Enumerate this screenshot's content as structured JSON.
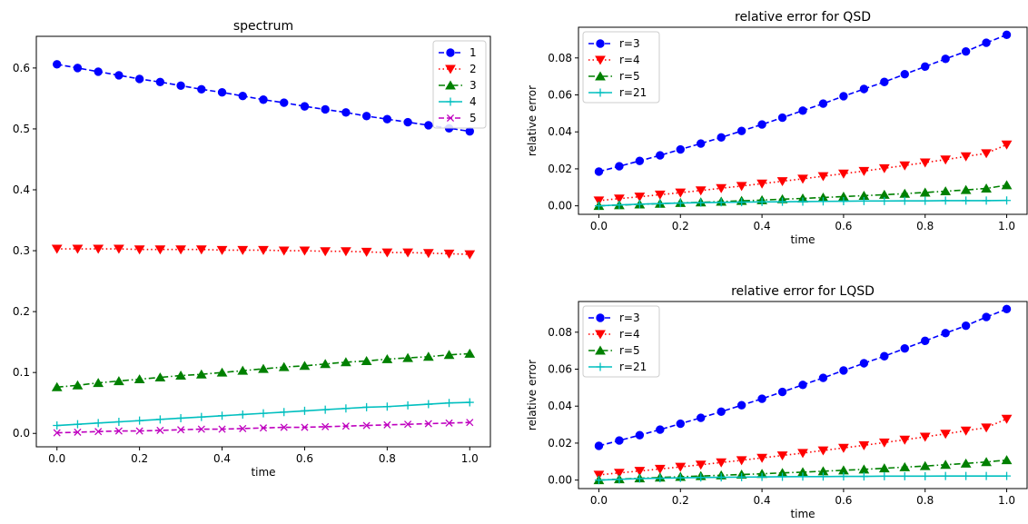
{
  "chart_data": [
    {
      "type": "line",
      "title": "spectrum",
      "xlabel": "time",
      "ylabel": "",
      "xlim": [
        -0.05,
        1.05
      ],
      "ylim": [
        -0.022,
        0.652
      ],
      "xticks": [
        0.0,
        0.2,
        0.4,
        0.6,
        0.8,
        1.0
      ],
      "xtick_labels": [
        "0.0",
        "0.2",
        "0.4",
        "0.6",
        "0.8",
        "1.0"
      ],
      "yticks": [
        0.0,
        0.1,
        0.2,
        0.3,
        0.4,
        0.5,
        0.6
      ],
      "ytick_labels": [
        "0.0",
        "0.1",
        "0.2",
        "0.3",
        "0.4",
        "0.5",
        "0.6"
      ],
      "grid": false,
      "legend": "top-right",
      "x": [
        0.0,
        0.05,
        0.1,
        0.15,
        0.2,
        0.25,
        0.3,
        0.35,
        0.4,
        0.45,
        0.5,
        0.55,
        0.6,
        0.65,
        0.7,
        0.75,
        0.8,
        0.85,
        0.9,
        0.95,
        1.0
      ],
      "series": [
        {
          "name": "1",
          "color": "#0000ff",
          "style": "dashed",
          "marker": "circle",
          "values": [
            0.606,
            0.6,
            0.594,
            0.588,
            0.582,
            0.577,
            0.571,
            0.565,
            0.56,
            0.554,
            0.548,
            0.543,
            0.537,
            0.532,
            0.527,
            0.521,
            0.516,
            0.511,
            0.506,
            0.501,
            0.496
          ]
        },
        {
          "name": "2",
          "color": "#ff0000",
          "style": "dotted",
          "marker": "triangle-down",
          "values": [
            0.303,
            0.303,
            0.303,
            0.303,
            0.302,
            0.302,
            0.302,
            0.302,
            0.301,
            0.301,
            0.301,
            0.3,
            0.3,
            0.299,
            0.299,
            0.298,
            0.297,
            0.297,
            0.296,
            0.295,
            0.294
          ]
        },
        {
          "name": "3",
          "color": "#008000",
          "style": "dashdot",
          "marker": "triangle-up",
          "values": [
            0.076,
            0.079,
            0.083,
            0.086,
            0.089,
            0.092,
            0.095,
            0.097,
            0.1,
            0.103,
            0.106,
            0.109,
            0.111,
            0.114,
            0.117,
            0.119,
            0.122,
            0.124,
            0.126,
            0.129,
            0.131
          ]
        },
        {
          "name": "4",
          "color": "#00bfbf",
          "style": "solid",
          "marker": "plus",
          "values": [
            0.013,
            0.015,
            0.017,
            0.019,
            0.021,
            0.023,
            0.025,
            0.027,
            0.029,
            0.031,
            0.033,
            0.035,
            0.037,
            0.039,
            0.041,
            0.043,
            0.044,
            0.046,
            0.048,
            0.05,
            0.051
          ]
        },
        {
          "name": "5",
          "color": "#bf00bf",
          "style": "dashed",
          "marker": "x",
          "values": [
            0.001,
            0.002,
            0.003,
            0.004,
            0.004,
            0.005,
            0.006,
            0.007,
            0.007,
            0.008,
            0.009,
            0.01,
            0.01,
            0.011,
            0.012,
            0.013,
            0.014,
            0.015,
            0.016,
            0.017,
            0.018
          ]
        }
      ]
    },
    {
      "type": "line",
      "title": "relative error for QSD",
      "xlabel": "time",
      "ylabel": "relative error",
      "xlim": [
        -0.05,
        1.05
      ],
      "ylim": [
        -0.0046,
        0.0966
      ],
      "xticks": [
        0.0,
        0.2,
        0.4,
        0.6,
        0.8,
        1.0
      ],
      "xtick_labels": [
        "0.0",
        "0.2",
        "0.4",
        "0.6",
        "0.8",
        "1.0"
      ],
      "yticks": [
        0.0,
        0.02,
        0.04,
        0.06,
        0.08
      ],
      "ytick_labels": [
        "0.00",
        "0.02",
        "0.04",
        "0.06",
        "0.08"
      ],
      "grid": false,
      "legend": "top-left",
      "x": [
        0.0,
        0.05,
        0.1,
        0.15,
        0.2,
        0.25,
        0.3,
        0.35,
        0.4,
        0.45,
        0.5,
        0.55,
        0.6,
        0.65,
        0.7,
        0.75,
        0.8,
        0.85,
        0.9,
        0.95,
        1.0
      ],
      "series": [
        {
          "name": "r=3",
          "color": "#0000ff",
          "style": "dashed",
          "marker": "circle",
          "values": [
            0.0185,
            0.0214,
            0.0243,
            0.0273,
            0.0305,
            0.0337,
            0.037,
            0.0405,
            0.044,
            0.0477,
            0.0515,
            0.0553,
            0.0593,
            0.0632,
            0.067,
            0.0712,
            0.0753,
            0.0795,
            0.0835,
            0.0882,
            0.0925
          ]
        },
        {
          "name": "r=4",
          "color": "#ff0000",
          "style": "dotted",
          "marker": "triangle-down",
          "values": [
            0.0028,
            0.0039,
            0.0049,
            0.006,
            0.0071,
            0.0083,
            0.0095,
            0.0107,
            0.012,
            0.0133,
            0.0146,
            0.016,
            0.0174,
            0.0188,
            0.0203,
            0.0218,
            0.0234,
            0.025,
            0.0267,
            0.0284,
            0.0331
          ]
        },
        {
          "name": "r=5",
          "color": "#008000",
          "style": "dashdot",
          "marker": "triangle-up",
          "values": [
            0.0,
            0.0004,
            0.0008,
            0.0012,
            0.0016,
            0.0019,
            0.0023,
            0.0027,
            0.0031,
            0.0036,
            0.004,
            0.0045,
            0.005,
            0.0055,
            0.006,
            0.0066,
            0.0072,
            0.0079,
            0.0086,
            0.0094,
            0.0112
          ]
        },
        {
          "name": "r=21",
          "color": "#00bfbf",
          "style": "solid",
          "marker": "plus",
          "values": [
            0.0,
            0.0005,
            0.0009,
            0.0012,
            0.0015,
            0.0017,
            0.0019,
            0.002,
            0.0021,
            0.0022,
            0.0023,
            0.0024,
            0.0025,
            0.0026,
            0.0026,
            0.0027,
            0.0027,
            0.0028,
            0.0028,
            0.0028,
            0.0029
          ]
        }
      ]
    },
    {
      "type": "line",
      "title": "relative error for LQSD",
      "xlabel": "time",
      "ylabel": "relative error",
      "xlim": [
        -0.05,
        1.05
      ],
      "ylim": [
        -0.0046,
        0.0966
      ],
      "xticks": [
        0.0,
        0.2,
        0.4,
        0.6,
        0.8,
        1.0
      ],
      "xtick_labels": [
        "0.0",
        "0.2",
        "0.4",
        "0.6",
        "0.8",
        "1.0"
      ],
      "yticks": [
        0.0,
        0.02,
        0.04,
        0.06,
        0.08
      ],
      "ytick_labels": [
        "0.00",
        "0.02",
        "0.04",
        "0.06",
        "0.08"
      ],
      "grid": false,
      "legend": "top-left",
      "x": [
        0.0,
        0.05,
        0.1,
        0.15,
        0.2,
        0.25,
        0.3,
        0.35,
        0.4,
        0.45,
        0.5,
        0.55,
        0.6,
        0.65,
        0.7,
        0.75,
        0.8,
        0.85,
        0.9,
        0.95,
        1.0
      ],
      "series": [
        {
          "name": "r=3",
          "color": "#0000ff",
          "style": "dashed",
          "marker": "circle",
          "values": [
            0.0185,
            0.0214,
            0.0243,
            0.0273,
            0.0305,
            0.0337,
            0.037,
            0.0405,
            0.044,
            0.0477,
            0.0515,
            0.0553,
            0.0593,
            0.0632,
            0.067,
            0.0712,
            0.0753,
            0.0795,
            0.0835,
            0.0882,
            0.0925
          ]
        },
        {
          "name": "r=4",
          "color": "#ff0000",
          "style": "dotted",
          "marker": "triangle-down",
          "values": [
            0.0028,
            0.0039,
            0.0049,
            0.006,
            0.0071,
            0.0083,
            0.0095,
            0.0107,
            0.012,
            0.0133,
            0.0146,
            0.016,
            0.0174,
            0.0188,
            0.0203,
            0.0218,
            0.0234,
            0.025,
            0.0267,
            0.0284,
            0.0331
          ]
        },
        {
          "name": "r=5",
          "color": "#008000",
          "style": "dashdot",
          "marker": "triangle-up",
          "values": [
            0.0,
            0.0005,
            0.001,
            0.0014,
            0.0018,
            0.0022,
            0.0026,
            0.003,
            0.0034,
            0.0039,
            0.0043,
            0.0048,
            0.0053,
            0.0058,
            0.0064,
            0.007,
            0.0076,
            0.0083,
            0.009,
            0.0098,
            0.0108
          ]
        },
        {
          "name": "r=21",
          "color": "#00bfbf",
          "style": "solid",
          "marker": "plus",
          "values": [
            0.0,
            0.0004,
            0.0008,
            0.001,
            0.0012,
            0.0014,
            0.0015,
            0.0016,
            0.0017,
            0.0018,
            0.0019,
            0.0019,
            0.002,
            0.002,
            0.0021,
            0.0021,
            0.0021,
            0.0022,
            0.0022,
            0.0022,
            0.0022
          ]
        }
      ]
    }
  ]
}
